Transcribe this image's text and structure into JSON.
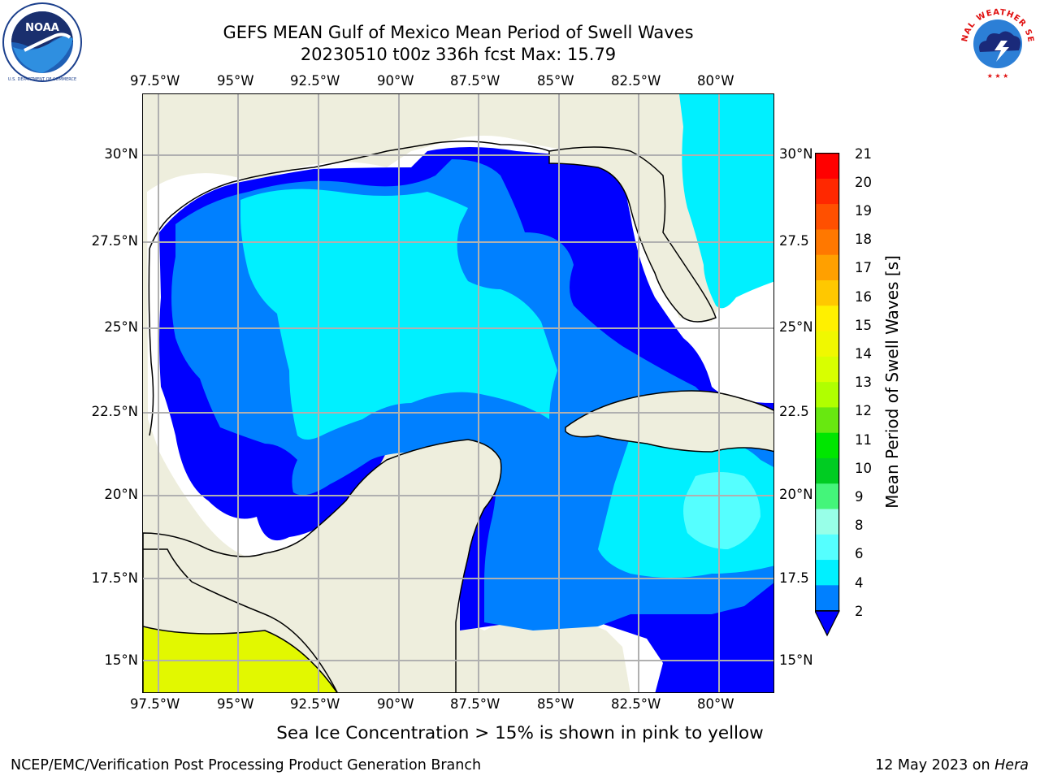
{
  "title": {
    "line1": "GEFS MEAN Gulf of Mexico Mean Period of Swell Waves",
    "line2": "20230510 t00z 336h fcst   Max: 15.79"
  },
  "map": {
    "lon_labels": [
      "97.5°W",
      "95°W",
      "92.5°W",
      "90°W",
      "87.5°W",
      "85°W",
      "82.5°W",
      "80°W"
    ],
    "lat_labels_left": [
      "30°N",
      "27.5°N",
      "25°N",
      "22.5°N",
      "20°N",
      "17.5°N",
      "15°N"
    ],
    "lat_labels_right": [
      "30°N",
      "27.5",
      "25°N",
      "22.5",
      "20°N",
      "17.5",
      "15°N"
    ],
    "colors": {
      "land": "#eeeedd",
      "coast": "#000000",
      "grid": "#b0b0b0"
    }
  },
  "colorbar": {
    "label": "Mean Period of Swell Waves [s]",
    "ticks": [
      "21",
      "20",
      "19",
      "18",
      "17",
      "16",
      "15",
      "14",
      "13",
      "12",
      "11",
      "10",
      "9",
      "8",
      "6",
      "4",
      "2"
    ],
    "colors_top_to_bottom": [
      "#ff0000",
      "#ff2800",
      "#ff5000",
      "#ff7800",
      "#ffa000",
      "#ffc800",
      "#fff000",
      "#f0f800",
      "#d8ff00",
      "#b0ff00",
      "#68e810",
      "#00e600",
      "#00cc22",
      "#44f57a",
      "#98ffe8",
      "#55ffff",
      "#00f0ff",
      "#0080ff"
    ],
    "extend_color": "#0000ff"
  },
  "footnote": "Sea Ice Concentration > 15% is shown in pink to yellow",
  "footer": {
    "left": "NCEP/EMC/Verification Post Processing Product Generation Branch",
    "right_date": "12 May 2023 on ",
    "right_host": "Hera"
  },
  "logos": {
    "left": "NOAA",
    "right": "NATIONAL WEATHER SERVICE"
  }
}
